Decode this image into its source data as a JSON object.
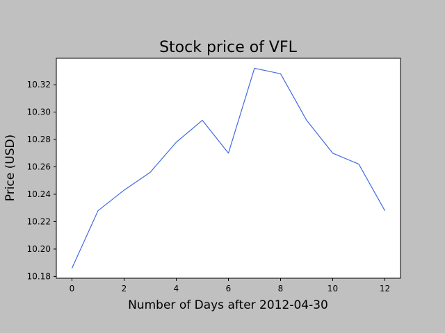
{
  "colors": {
    "figure_background": "#c0c0c0",
    "plot_background": "#ffffff",
    "line": "#4169e1",
    "axes": "#000000"
  },
  "chart_data": {
    "type": "line",
    "title": "Stock price of VFL",
    "xlabel": "Number of Days after 2012-04-30",
    "ylabel": "Price (USD)",
    "x": [
      0,
      1,
      2,
      3,
      4,
      5,
      6,
      7,
      8,
      9,
      10,
      11,
      12
    ],
    "series": [
      {
        "values": [
          10.186,
          10.228,
          10.243,
          10.256,
          10.278,
          10.294,
          10.27,
          10.332,
          10.328,
          10.294,
          10.27,
          10.262,
          10.228
        ]
      }
    ],
    "xlim": [
      -0.6,
      12.6
    ],
    "ylim": [
      10.1787,
      10.3393
    ],
    "xticks": [
      0,
      2,
      4,
      6,
      8,
      10,
      12
    ],
    "xtick_labels": [
      "0",
      "2",
      "4",
      "6",
      "8",
      "10",
      "12"
    ],
    "yticks": [
      10.18,
      10.2,
      10.22,
      10.24,
      10.26,
      10.28,
      10.3,
      10.32
    ],
    "ytick_labels": [
      "10.18",
      "10.20",
      "10.22",
      "10.24",
      "10.26",
      "10.28",
      "10.30",
      "10.32"
    ],
    "grid": false,
    "legend": false
  }
}
